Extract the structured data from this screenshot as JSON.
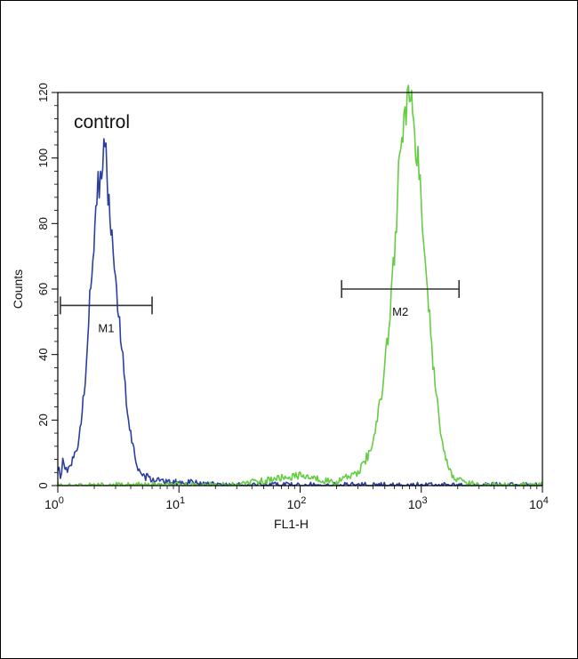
{
  "chart_data": {
    "type": "line",
    "title": "",
    "xlabel": "FL1-H",
    "ylabel": "Counts",
    "x_scale": "log",
    "xlim": [
      1,
      10000
    ],
    "ylim": [
      0,
      120
    ],
    "x_ticks": [
      {
        "value": 1,
        "base": "10",
        "exp": "0"
      },
      {
        "value": 10,
        "base": "10",
        "exp": "1"
      },
      {
        "value": 100,
        "base": "10",
        "exp": "2"
      },
      {
        "value": 1000,
        "base": "10",
        "exp": "3"
      },
      {
        "value": 10000,
        "base": "10",
        "exp": "4"
      }
    ],
    "y_ticks": [
      0,
      20,
      40,
      60,
      80,
      100,
      120
    ],
    "annotation": "control",
    "series": [
      {
        "name": "",
        "color": "#2b3f9e",
        "points": [
          [
            1.0,
            6
          ],
          [
            1.05,
            3
          ],
          [
            1.1,
            7
          ],
          [
            1.2,
            4
          ],
          [
            1.35,
            8
          ],
          [
            1.5,
            14
          ],
          [
            1.65,
            28
          ],
          [
            1.8,
            50
          ],
          [
            1.95,
            72
          ],
          [
            2.1,
            88
          ],
          [
            2.25,
            96
          ],
          [
            2.4,
            104
          ],
          [
            2.5,
            98
          ],
          [
            2.6,
            90
          ],
          [
            2.8,
            78
          ],
          [
            3.0,
            62
          ],
          [
            3.3,
            45
          ],
          [
            3.6,
            30
          ],
          [
            4.0,
            16
          ],
          [
            4.5,
            6
          ],
          [
            5.0,
            3
          ],
          [
            6.0,
            2
          ],
          [
            8.0,
            1
          ],
          [
            12.0,
            1
          ],
          [
            20.0,
            0
          ],
          [
            50.0,
            0
          ],
          [
            10000.0,
            0
          ]
        ]
      },
      {
        "name": "",
        "color": "#66cc44",
        "points": [
          [
            1.0,
            0
          ],
          [
            30.0,
            0
          ],
          [
            60.0,
            2
          ],
          [
            100.0,
            3
          ],
          [
            200.0,
            1
          ],
          [
            300.0,
            4
          ],
          [
            400.0,
            12
          ],
          [
            500.0,
            35
          ],
          [
            600.0,
            70
          ],
          [
            650.0,
            95
          ],
          [
            750.0,
            112
          ],
          [
            800.0,
            118
          ],
          [
            900.0,
            105
          ],
          [
            1000.0,
            85
          ],
          [
            1150.0,
            55
          ],
          [
            1300.0,
            30
          ],
          [
            1500.0,
            12
          ],
          [
            1800.0,
            3
          ],
          [
            2200.0,
            1
          ],
          [
            3000.0,
            0
          ],
          [
            10000.0,
            0
          ]
        ]
      }
    ],
    "markers": [
      {
        "label": "M1",
        "x_start": 1.05,
        "x_end": 6.0,
        "y": 55
      },
      {
        "label": "M2",
        "x_start": 220,
        "x_end": 2050,
        "y": 60
      }
    ]
  }
}
